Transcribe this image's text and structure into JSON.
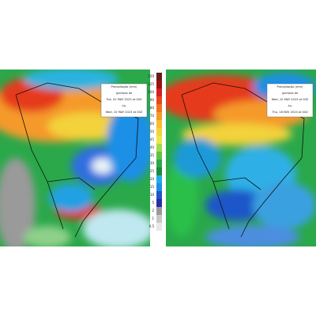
{
  "panels": [
    {
      "legend": {
        "title": "Precipitação (mm)",
        "subtitle": "(período de",
        "start": "Tue, 02 MAY 2023 at 00Z",
        "sep": "-to-",
        "end": "Wed, 10 MAY 2023 at 00Z"
      }
    },
    {
      "legend": {
        "title": "Precipitação (mm)",
        "subtitle": "(período de",
        "start": "Wed, 10 MAY 2023 at 00Z",
        "sep": "-to-",
        "end": "Thu, 18 MAY 2023 at 00Z"
      }
    }
  ],
  "colorbar": {
    "labels": [
      150,
      125,
      100,
      90,
      80,
      70,
      60,
      50,
      45,
      40,
      35,
      30,
      25,
      20,
      15,
      10,
      5,
      2,
      1,
      0.5
    ]
  }
}
